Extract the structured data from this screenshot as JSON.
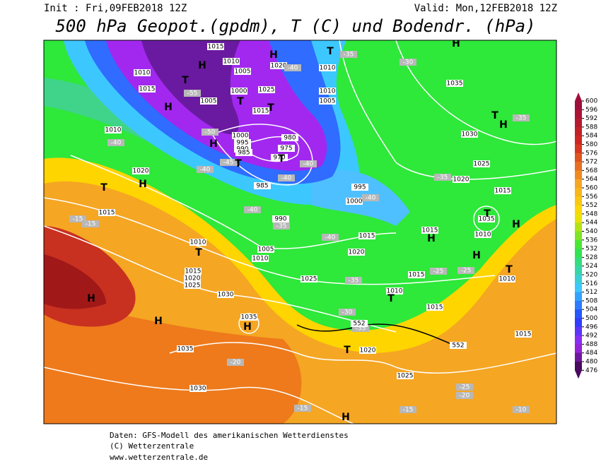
{
  "header": {
    "init": "Init : Fri,09FEB2018 12Z",
    "valid": "Valid: Mon,12FEB2018 12Z",
    "title": "500 hPa Geopot.(gpdm), T (C) und Bodendr. (hPa)"
  },
  "colorbar": {
    "labels": [
      600,
      596,
      592,
      588,
      584,
      580,
      576,
      572,
      568,
      564,
      560,
      556,
      552,
      548,
      544,
      540,
      536,
      532,
      528,
      524,
      520,
      516,
      512,
      508,
      504,
      500,
      496,
      492,
      488,
      484,
      480,
      476
    ]
  },
  "map": {
    "isobar_labels": [
      1015,
      1010,
      1005,
      1020,
      1010,
      1010,
      1015,
      1000,
      1025,
      1015,
      1010,
      1005,
      1005,
      1010,
      1000,
      995,
      990,
      985,
      980,
      975,
      970,
      1020,
      985,
      995,
      1000,
      1020,
      1025,
      1015,
      1015,
      990,
      1010,
      1005,
      1010,
      1015,
      1020,
      1015,
      1010,
      1035,
      1015,
      1020,
      1025,
      1030,
      1025,
      1015,
      1010,
      1010,
      1015,
      1035,
      1035,
      1020,
      1025,
      1030,
      1015,
      1035,
      1030
    ],
    "temperature_labels": [
      -35,
      -30,
      -40,
      -55,
      -50,
      -40,
      -45,
      -40,
      -40,
      -40,
      -40,
      -35,
      -40,
      -35,
      -35,
      -40,
      -15,
      -15,
      -25,
      -25,
      -35,
      -30,
      -35,
      -20,
      -15,
      -15,
      -25,
      -20,
      -10
    ],
    "height_labels": [
      552,
      552
    ],
    "pressure_centers": [
      "H",
      "T",
      "H",
      "T",
      "H",
      "H",
      "T",
      "T",
      "H",
      "T",
      "T",
      "H",
      "T",
      "T",
      "H",
      "T",
      "H",
      "H",
      "H",
      "T",
      "T",
      "T",
      "H",
      "H",
      "H",
      "T",
      "H"
    ]
  },
  "footer": {
    "source": "Daten: GFS-Modell des amerikanischen Wetterdienstes",
    "copyright": "(C) Wetterzentrale",
    "url": "www.wetterzentrale.de"
  }
}
